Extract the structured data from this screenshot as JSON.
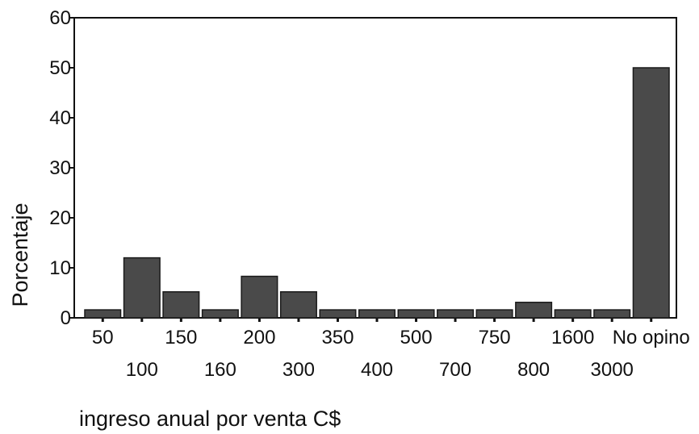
{
  "chart_data": {
    "type": "bar",
    "xlabel": "ingreso anual por venta C$",
    "ylabel": "Porcentaje",
    "ylim": [
      0,
      60
    ],
    "yticks": [
      "0",
      "10",
      "20",
      "30",
      "40",
      "50",
      "60"
    ],
    "categories": [
      "50",
      "100",
      "150",
      "160",
      "200",
      "300",
      "350",
      "400",
      "500",
      "700",
      "750",
      "800",
      "1600",
      "3000",
      "No opino"
    ],
    "values": [
      1.6,
      12,
      5.2,
      1.6,
      8.3,
      5.2,
      1.6,
      1.6,
      1.6,
      1.6,
      1.6,
      3.1,
      1.6,
      1.6,
      50
    ],
    "grid": false,
    "legend": "none",
    "colors": {
      "bar_fill": "#4a4a4a",
      "bar_stroke": "#1a1a1a",
      "axis": "#111111"
    }
  }
}
